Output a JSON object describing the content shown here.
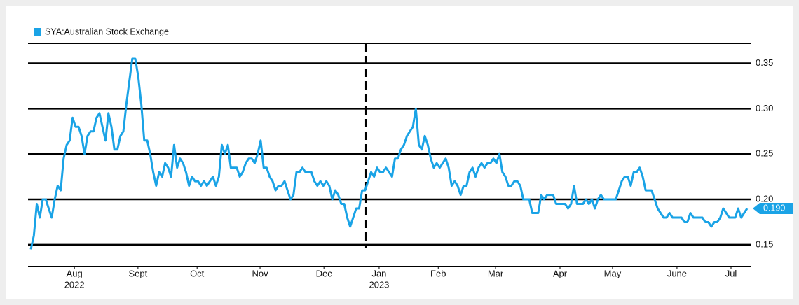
{
  "chart_data": {
    "type": "line",
    "series": [
      {
        "name": "SYA:Australian Stock Exchange",
        "color": "#1aa3e6",
        "values": [
          0.145,
          0.16,
          0.195,
          0.18,
          0.2,
          0.2,
          0.19,
          0.18,
          0.2,
          0.215,
          0.21,
          0.245,
          0.26,
          0.265,
          0.29,
          0.28,
          0.28,
          0.27,
          0.25,
          0.27,
          0.275,
          0.275,
          0.29,
          0.295,
          0.28,
          0.265,
          0.295,
          0.28,
          0.255,
          0.255,
          0.27,
          0.275,
          0.305,
          0.33,
          0.355,
          0.355,
          0.335,
          0.305,
          0.265,
          0.265,
          0.25,
          0.23,
          0.215,
          0.23,
          0.225,
          0.24,
          0.235,
          0.225,
          0.26,
          0.235,
          0.245,
          0.24,
          0.23,
          0.215,
          0.225,
          0.22,
          0.22,
          0.215,
          0.22,
          0.215,
          0.22,
          0.225,
          0.215,
          0.225,
          0.26,
          0.25,
          0.26,
          0.235,
          0.235,
          0.235,
          0.225,
          0.23,
          0.24,
          0.245,
          0.245,
          0.24,
          0.25,
          0.265,
          0.235,
          0.235,
          0.225,
          0.22,
          0.21,
          0.215,
          0.215,
          0.22,
          0.21,
          0.2,
          0.205,
          0.23,
          0.23,
          0.235,
          0.23,
          0.23,
          0.23,
          0.22,
          0.215,
          0.22,
          0.215,
          0.22,
          0.215,
          0.2,
          0.21,
          0.205,
          0.195,
          0.195,
          0.18,
          0.17,
          0.18,
          0.19,
          0.19,
          0.21,
          0.21,
          0.22,
          0.23,
          0.225,
          0.235,
          0.23,
          0.23,
          0.235,
          0.23,
          0.225,
          0.245,
          0.245,
          0.255,
          0.26,
          0.27,
          0.275,
          0.28,
          0.3,
          0.26,
          0.255,
          0.27,
          0.26,
          0.245,
          0.235,
          0.24,
          0.235,
          0.24,
          0.245,
          0.235,
          0.215,
          0.22,
          0.215,
          0.205,
          0.215,
          0.215,
          0.23,
          0.235,
          0.225,
          0.235,
          0.24,
          0.235,
          0.24,
          0.24,
          0.245,
          0.24,
          0.25,
          0.23,
          0.225,
          0.215,
          0.215,
          0.22,
          0.22,
          0.215,
          0.2,
          0.2,
          0.2,
          0.185,
          0.185,
          0.185,
          0.205,
          0.2,
          0.205,
          0.205,
          0.205,
          0.195,
          0.195,
          0.195,
          0.195,
          0.19,
          0.195,
          0.215,
          0.195,
          0.195,
          0.195,
          0.2,
          0.195,
          0.2,
          0.19,
          0.2,
          0.205,
          0.2,
          0.2,
          0.2,
          0.2,
          0.2,
          0.21,
          0.22,
          0.225,
          0.225,
          0.215,
          0.23,
          0.23,
          0.235,
          0.225,
          0.21,
          0.21,
          0.21,
          0.2,
          0.19,
          0.185,
          0.18,
          0.18,
          0.185,
          0.18,
          0.18,
          0.18,
          0.18,
          0.175,
          0.175,
          0.185,
          0.18,
          0.18,
          0.18,
          0.18,
          0.175,
          0.175,
          0.17,
          0.175,
          0.175,
          0.18,
          0.19,
          0.185,
          0.18,
          0.18,
          0.18,
          0.19,
          0.18,
          0.185,
          0.19
        ]
      }
    ],
    "xlim": [
      0,
      240
    ],
    "xticks": [
      {
        "value": 14.6,
        "label": "Aug"
      },
      {
        "value": 35.9,
        "label": "Sept"
      },
      {
        "value": 55.7,
        "label": "Oct"
      },
      {
        "value": 76.8,
        "label": "Nov"
      },
      {
        "value": 98.2,
        "label": "Dec"
      },
      {
        "value": 116.7,
        "label": "Jan"
      },
      {
        "value": 136.5,
        "label": "Feb"
      },
      {
        "value": 155.7,
        "label": "Mar"
      },
      {
        "value": 177.3,
        "label": "Apr"
      },
      {
        "value": 194.9,
        "label": "May"
      },
      {
        "value": 216.5,
        "label": "June"
      },
      {
        "value": 234.6,
        "label": "Jul"
      }
    ],
    "year_ticks": [
      {
        "value": 14.6,
        "label": "2022"
      },
      {
        "value": 116.7,
        "label": "2023"
      }
    ],
    "year_divider": 112.3,
    "ylim": [
      0.126,
      0.372
    ],
    "yticks": [
      0.15,
      {
        "value": 0.2,
        "label": "0.20"
      },
      0.25,
      {
        "value": 0.3,
        "label": "0.30"
      },
      0.35
    ],
    "grid": true,
    "last_price": {
      "value": 0.19,
      "label": "0.190"
    }
  }
}
